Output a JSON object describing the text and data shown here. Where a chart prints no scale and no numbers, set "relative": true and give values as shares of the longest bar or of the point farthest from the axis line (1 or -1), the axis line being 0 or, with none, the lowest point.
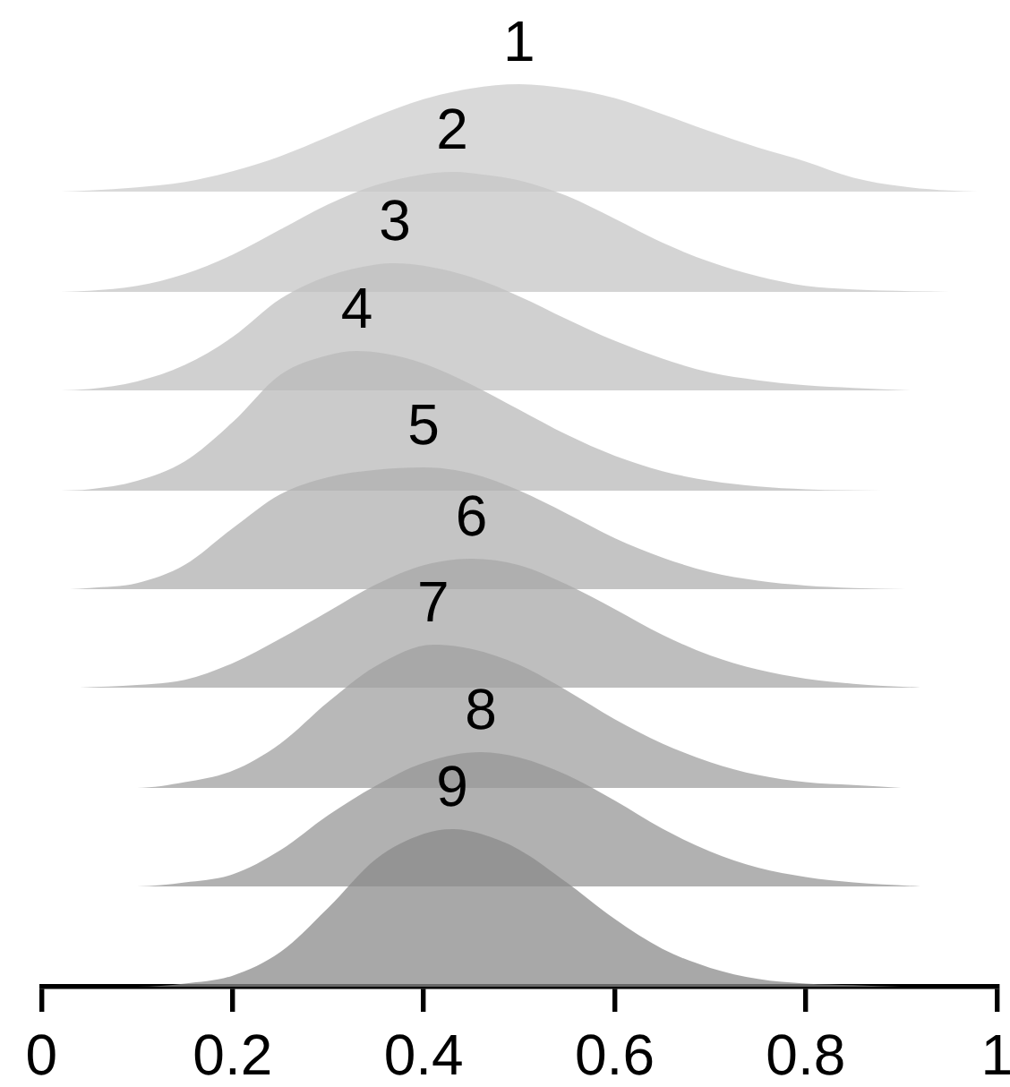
{
  "chart_data": [
    {
      "type": "area",
      "relative": true,
      "xlim": [
        0,
        1
      ],
      "tick_labels": false,
      "series": [
        {
          "name": "1",
          "color": "#d9d9d9",
          "x": [
            0.02,
            0.05,
            0.1,
            0.15,
            0.2,
            0.25,
            0.3,
            0.35,
            0.4,
            0.45,
            0.5,
            0.55,
            0.6,
            0.65,
            0.7,
            0.75,
            0.8,
            0.85,
            0.9,
            0.95,
            0.98
          ],
          "values": [
            0,
            0.01,
            0.04,
            0.09,
            0.19,
            0.33,
            0.51,
            0.7,
            0.86,
            0.96,
            1,
            0.96,
            0.87,
            0.72,
            0.56,
            0.41,
            0.28,
            0.13,
            0.05,
            0.01,
            0
          ]
        }
      ]
    },
    {
      "type": "area",
      "relative": true,
      "xlim": [
        0,
        1
      ],
      "tick_labels": false,
      "series": [
        {
          "name": "2",
          "color": "#d4d4d4",
          "x": [
            0.02,
            0.05,
            0.1,
            0.15,
            0.2,
            0.25,
            0.3,
            0.35,
            0.4,
            0.43,
            0.46,
            0.5,
            0.55,
            0.6,
            0.65,
            0.7,
            0.75,
            0.8,
            0.85,
            0.95
          ],
          "values": [
            0,
            0.01,
            0.05,
            0.15,
            0.31,
            0.52,
            0.73,
            0.89,
            0.98,
            1,
            0.98,
            0.93,
            0.8,
            0.61,
            0.41,
            0.25,
            0.13,
            0.05,
            0.02,
            0
          ]
        }
      ]
    },
    {
      "type": "area",
      "relative": true,
      "xlim": [
        0,
        1
      ],
      "tick_labels": false,
      "series": [
        {
          "name": "3",
          "color": "#d0d0d0",
          "x": [
            0.02,
            0.05,
            0.1,
            0.15,
            0.2,
            0.25,
            0.3,
            0.35,
            0.37,
            0.4,
            0.45,
            0.5,
            0.55,
            0.6,
            0.65,
            0.7,
            0.75,
            0.8,
            0.85,
            0.91
          ],
          "values": [
            0,
            0.01,
            0.07,
            0.2,
            0.42,
            0.72,
            0.9,
            0.99,
            1,
            0.98,
            0.89,
            0.74,
            0.56,
            0.39,
            0.25,
            0.14,
            0.08,
            0.04,
            0.02,
            0
          ]
        }
      ]
    },
    {
      "type": "area",
      "relative": true,
      "xlim": [
        0,
        1
      ],
      "tick_labels": false,
      "series": [
        {
          "name": "4",
          "color": "#cbcbcb",
          "x": [
            0.02,
            0.05,
            0.1,
            0.15,
            0.2,
            0.25,
            0.3,
            0.33,
            0.36,
            0.4,
            0.45,
            0.5,
            0.55,
            0.6,
            0.65,
            0.7,
            0.75,
            0.8,
            0.88
          ],
          "values": [
            0,
            0.01,
            0.07,
            0.21,
            0.49,
            0.83,
            0.97,
            1,
            0.98,
            0.91,
            0.76,
            0.58,
            0.4,
            0.25,
            0.14,
            0.07,
            0.03,
            0.01,
            0
          ]
        }
      ]
    },
    {
      "type": "area",
      "relative": true,
      "xlim": [
        0,
        1
      ],
      "tick_labels": false,
      "series": [
        {
          "name": "5",
          "color": "#c4c4c4",
          "x": [
            0.03,
            0.05,
            0.1,
            0.15,
            0.2,
            0.25,
            0.3,
            0.35,
            0.4,
            0.45,
            0.5,
            0.55,
            0.6,
            0.65,
            0.7,
            0.75,
            0.8,
            0.85,
            0.905
          ],
          "values": [
            0,
            0.01,
            0.05,
            0.2,
            0.5,
            0.78,
            0.92,
            0.98,
            1,
            0.95,
            0.81,
            0.62,
            0.42,
            0.26,
            0.14,
            0.07,
            0.03,
            0.01,
            0
          ]
        }
      ]
    },
    {
      "type": "area",
      "relative": true,
      "xlim": [
        0,
        1
      ],
      "tick_labels": false,
      "series": [
        {
          "name": "6",
          "color": "#bebebe",
          "x": [
            0.04,
            0.1,
            0.15,
            0.2,
            0.25,
            0.3,
            0.35,
            0.4,
            0.45,
            0.5,
            0.55,
            0.6,
            0.65,
            0.7,
            0.75,
            0.8,
            0.85,
            0.92
          ],
          "values": [
            0,
            0.02,
            0.06,
            0.19,
            0.38,
            0.59,
            0.8,
            0.95,
            1,
            0.95,
            0.8,
            0.61,
            0.41,
            0.25,
            0.14,
            0.07,
            0.03,
            0
          ]
        }
      ]
    },
    {
      "type": "area",
      "relative": true,
      "xlim": [
        0,
        1
      ],
      "tick_labels": false,
      "series": [
        {
          "name": "7",
          "color": "#b8b8b8",
          "x": [
            0.04,
            0.1,
            0.15,
            0.2,
            0.25,
            0.3,
            0.35,
            0.41,
            0.45,
            0.5,
            0.55,
            0.6,
            0.65,
            0.7,
            0.75,
            0.8,
            0.85,
            0.9
          ],
          "values": [
            0,
            0,
            0.04,
            0.12,
            0.31,
            0.6,
            0.85,
            1,
            0.97,
            0.86,
            0.68,
            0.48,
            0.31,
            0.18,
            0.09,
            0.04,
            0.02,
            0
          ]
        }
      ]
    },
    {
      "type": "area",
      "relative": true,
      "xlim": [
        0,
        1
      ],
      "tick_labels": false,
      "series": [
        {
          "name": "8",
          "color": "#b1b1b1",
          "x": [
            0.05,
            0.1,
            0.15,
            0.2,
            0.25,
            0.3,
            0.35,
            0.4,
            0.46,
            0.5,
            0.55,
            0.6,
            0.65,
            0.7,
            0.75,
            0.8,
            0.85,
            0.92
          ],
          "values": [
            0,
            0,
            0.03,
            0.09,
            0.27,
            0.53,
            0.75,
            0.92,
            1,
            0.96,
            0.83,
            0.64,
            0.43,
            0.26,
            0.14,
            0.07,
            0.03,
            0
          ]
        }
      ]
    },
    {
      "type": "area",
      "relative": true,
      "xlim": [
        0,
        1
      ],
      "xticks": [
        0,
        0.2,
        0.4,
        0.6,
        0.8,
        1
      ],
      "series": [
        {
          "name": "9",
          "color": "#a8a8a8",
          "x": [
            0.04,
            0.1,
            0.15,
            0.2,
            0.25,
            0.3,
            0.35,
            0.4,
            0.43,
            0.46,
            0.5,
            0.55,
            0.6,
            0.65,
            0.7,
            0.75,
            0.8,
            0.85,
            0.9
          ],
          "values": [
            0,
            0,
            0.02,
            0.07,
            0.22,
            0.5,
            0.81,
            0.97,
            1,
            0.97,
            0.87,
            0.66,
            0.43,
            0.24,
            0.12,
            0.05,
            0.02,
            0.01,
            0
          ]
        }
      ]
    }
  ]
}
